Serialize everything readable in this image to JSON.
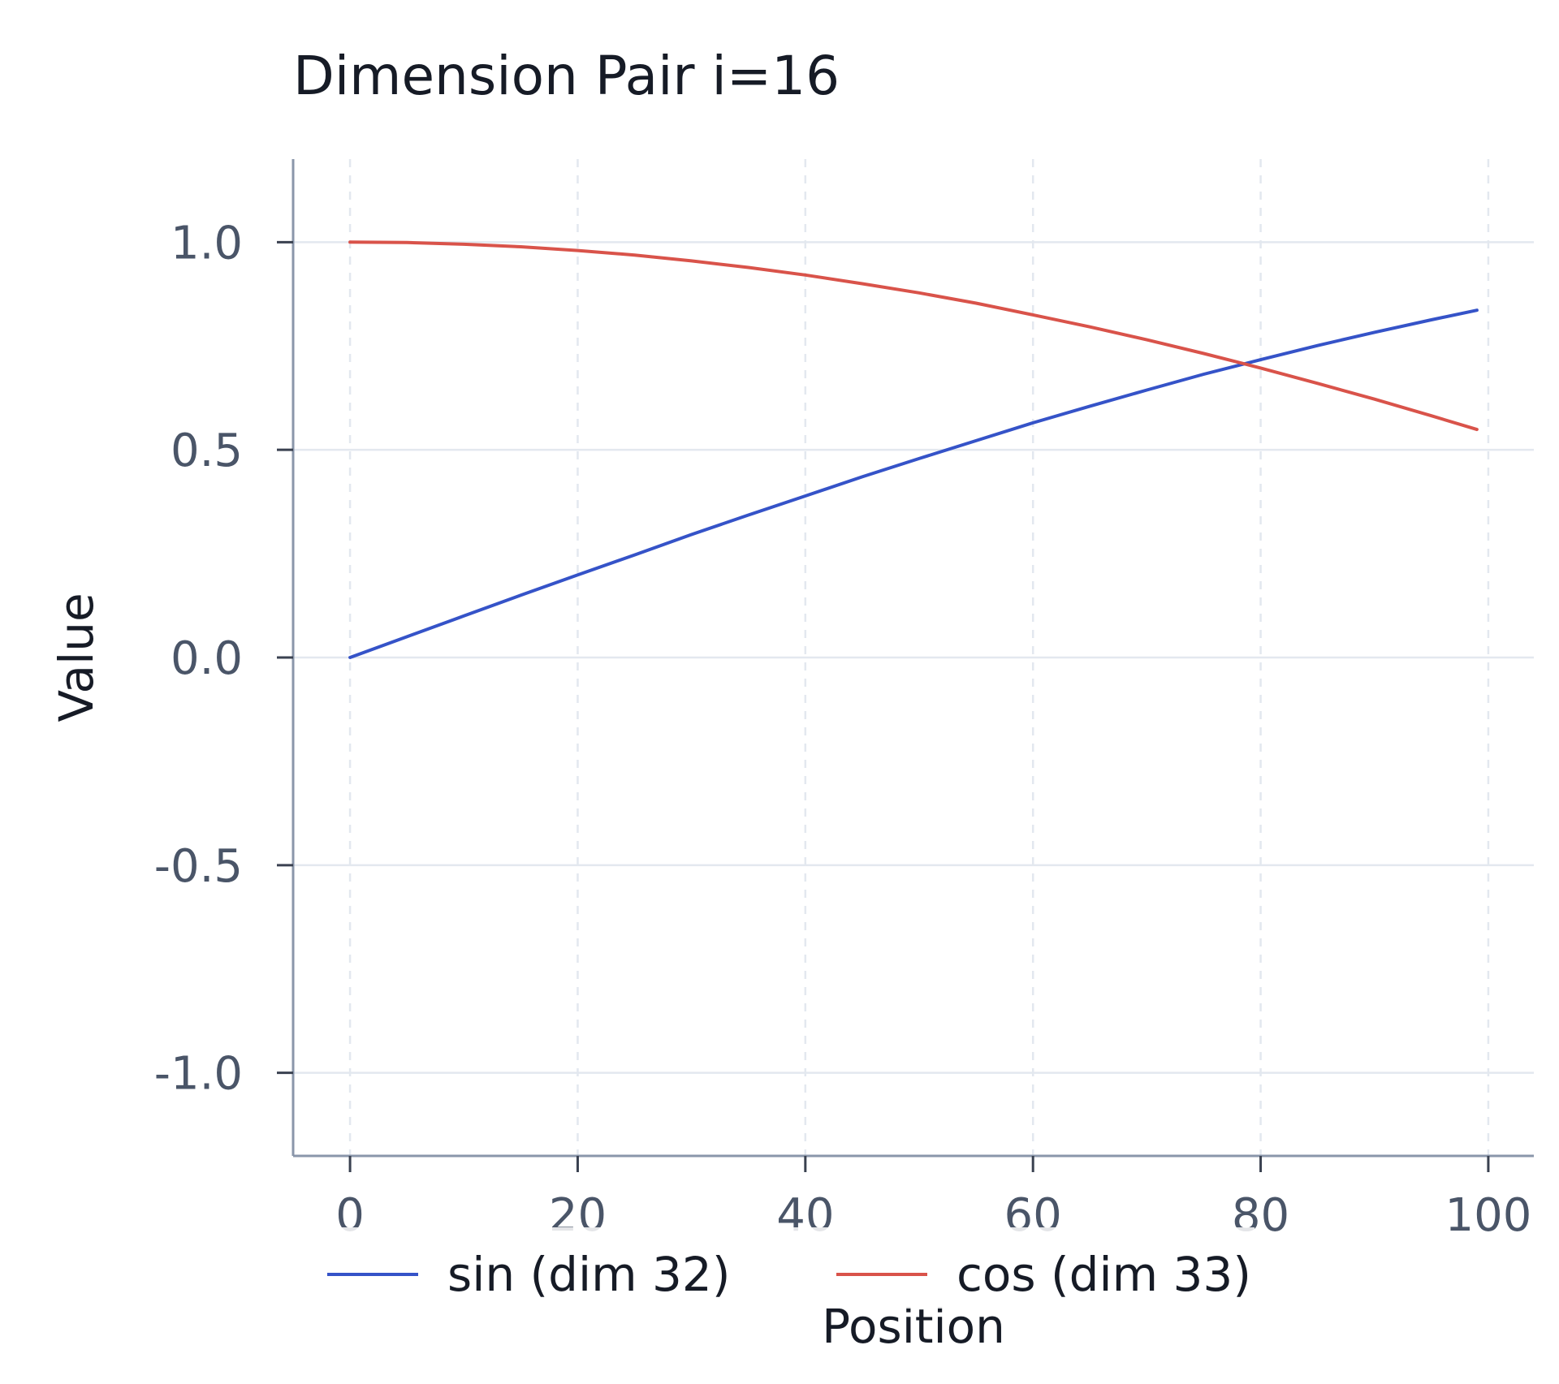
{
  "chart_data": {
    "type": "line",
    "title": "Dimension Pair i=16",
    "xlabel": "Position",
    "ylabel": "Value",
    "xlim": [
      -5,
      104
    ],
    "ylim": [
      -1.2,
      1.2
    ],
    "x_ticks": [
      0,
      20,
      40,
      60,
      80,
      100
    ],
    "x_tick_labels": [
      "0",
      "20",
      "40",
      "60",
      "80",
      "100"
    ],
    "y_ticks": [
      1.0,
      0.5,
      0.0,
      -0.5,
      -1.0
    ],
    "y_tick_labels": [
      "1.0",
      "0.5",
      "0.0",
      "-0.5",
      "-1.0"
    ],
    "grid": true,
    "legend_position": "bottom",
    "x": [
      0,
      5,
      10,
      15,
      20,
      25,
      30,
      35,
      40,
      45,
      50,
      55,
      60,
      65,
      70,
      75,
      80,
      85,
      90,
      95,
      99
    ],
    "series": [
      {
        "name": "sin (dim 32)",
        "color": "#3553c8",
        "values": [
          0.0,
          0.05,
          0.1,
          0.15,
          0.199,
          0.247,
          0.296,
          0.343,
          0.389,
          0.435,
          0.479,
          0.522,
          0.565,
          0.605,
          0.644,
          0.682,
          0.717,
          0.751,
          0.783,
          0.813,
          0.836
        ]
      },
      {
        "name": "cos (dim 33)",
        "color": "#d9534a",
        "values": [
          1.0,
          0.999,
          0.995,
          0.989,
          0.98,
          0.969,
          0.955,
          0.939,
          0.921,
          0.9,
          0.878,
          0.853,
          0.825,
          0.796,
          0.765,
          0.732,
          0.697,
          0.66,
          0.622,
          0.582,
          0.549
        ]
      }
    ]
  }
}
